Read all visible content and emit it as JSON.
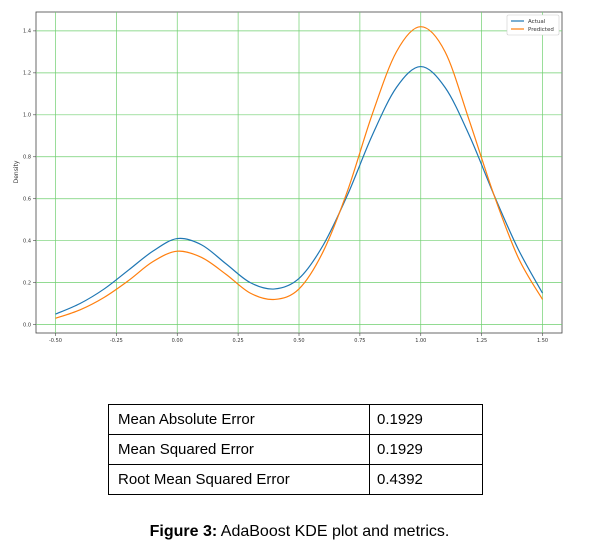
{
  "chart_data": {
    "type": "line",
    "title": "",
    "xlabel": "",
    "ylabel": "Density",
    "xlim": [
      -0.58,
      1.58
    ],
    "ylim": [
      -0.04,
      1.49
    ],
    "xticks": [
      "-0.50",
      "-0.25",
      "0.00",
      "0.25",
      "0.50",
      "0.75",
      "1.00",
      "1.25",
      "1.50"
    ],
    "xtick_values": [
      -0.5,
      -0.25,
      0.0,
      0.25,
      0.5,
      0.75,
      1.0,
      1.25,
      1.5
    ],
    "yticks": [
      "0.0",
      "0.2",
      "0.4",
      "0.6",
      "0.8",
      "1.0",
      "1.2",
      "1.4"
    ],
    "ytick_values": [
      0.0,
      0.2,
      0.4,
      0.6,
      0.8,
      1.0,
      1.2,
      1.4
    ],
    "grid": true,
    "legend": "top-right",
    "series": [
      {
        "name": "Actual",
        "color": "#1f77b4",
        "x": [
          -0.5,
          -0.4,
          -0.3,
          -0.2,
          -0.1,
          0.0,
          0.1,
          0.2,
          0.3,
          0.4,
          0.5,
          0.6,
          0.7,
          0.8,
          0.9,
          1.0,
          1.1,
          1.2,
          1.3,
          1.4,
          1.5
        ],
        "y": [
          0.05,
          0.1,
          0.17,
          0.26,
          0.35,
          0.41,
          0.38,
          0.29,
          0.2,
          0.17,
          0.22,
          0.38,
          0.62,
          0.9,
          1.13,
          1.23,
          1.13,
          0.9,
          0.62,
          0.36,
          0.15
        ]
      },
      {
        "name": "Predicted",
        "color": "#ff7f0e",
        "x": [
          -0.5,
          -0.4,
          -0.3,
          -0.2,
          -0.1,
          0.0,
          0.1,
          0.2,
          0.3,
          0.4,
          0.5,
          0.6,
          0.7,
          0.8,
          0.9,
          1.0,
          1.1,
          1.2,
          1.3,
          1.4,
          1.5
        ],
        "y": [
          0.03,
          0.07,
          0.13,
          0.21,
          0.3,
          0.35,
          0.32,
          0.24,
          0.15,
          0.12,
          0.17,
          0.35,
          0.64,
          1.0,
          1.3,
          1.42,
          1.3,
          0.97,
          0.62,
          0.32,
          0.12
        ]
      }
    ]
  },
  "metrics": [
    {
      "label": "Mean Absolute Error",
      "value": "0.1929"
    },
    {
      "label": "Mean Squared Error",
      "value": "0.1929"
    },
    {
      "label": "Root Mean Squared Error",
      "value": "0.4392"
    }
  ],
  "caption": {
    "bold": "Figure 3:",
    "text": " AdaBoost KDE plot and metrics."
  }
}
